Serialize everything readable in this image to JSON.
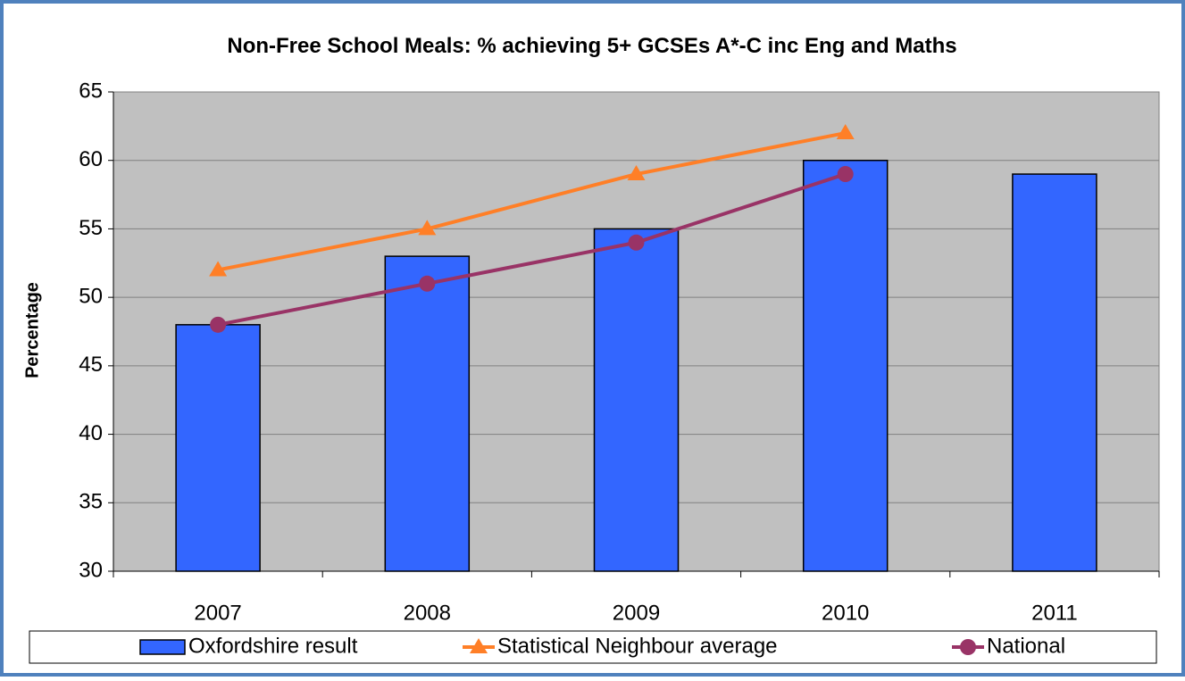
{
  "chart_data": {
    "type": "bar",
    "title": "Non-Free School Meals: % achieving 5+ GCSEs A*-C inc Eng and Maths",
    "y_label": "Percentage",
    "categories": [
      "2007",
      "2008",
      "2009",
      "2010",
      "2011"
    ],
    "series": [
      {
        "name": "Oxfordshire result",
        "type": "bar",
        "color": "#3366ff",
        "values": [
          48,
          53,
          55,
          60,
          59
        ]
      },
      {
        "name": "Statistical Neighbour average",
        "type": "line",
        "marker": "triangle",
        "color": "#ff7f27",
        "values": [
          52,
          55,
          59,
          62,
          null
        ]
      },
      {
        "name": "National",
        "type": "line",
        "marker": "circle",
        "color": "#993366",
        "values": [
          48,
          51,
          54,
          59,
          null
        ]
      }
    ],
    "ylim": [
      30,
      65
    ],
    "yticks": [
      30,
      35,
      40,
      45,
      50,
      55,
      60,
      65
    ],
    "grid": true
  }
}
